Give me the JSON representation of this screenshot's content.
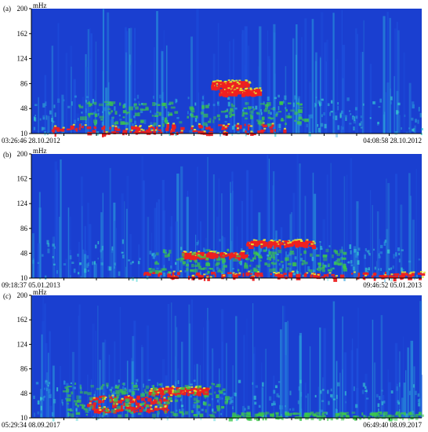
{
  "palette": {
    "background": "#1a3fd0",
    "low": "#1f55e0",
    "mid": "#2aa0dc",
    "cyan": "#38d0d0",
    "green": "#3cc84a",
    "yellow": "#e6e632",
    "red": "#ee2020"
  },
  "chart_data": [
    {
      "type": "heatmap",
      "panel_label": "(a)",
      "unit": "mHz",
      "y_ticks": [
        "200",
        "162",
        "124",
        "86",
        "48",
        "10"
      ],
      "ylim": [
        10,
        200
      ],
      "start_time": "03:26:46 28.10.2012",
      "end_time": "04:08:58 28.10.2012",
      "features": [
        {
          "band": "red",
          "freq_range_mHz": [
            80,
            90
          ],
          "time_fraction": [
            0.46,
            0.55
          ]
        },
        {
          "band": "red",
          "freq_range_mHz": [
            70,
            78
          ],
          "time_fraction": [
            0.48,
            0.58
          ]
        },
        {
          "band": "red",
          "freq_range_mHz": [
            10,
            25
          ],
          "time_fraction": [
            0.05,
            0.65
          ]
        },
        {
          "band": "green",
          "freq_range_mHz": [
            25,
            60
          ],
          "time_fraction": [
            0.12,
            0.7
          ]
        }
      ]
    },
    {
      "type": "heatmap",
      "panel_label": "(b)",
      "unit": "mHz",
      "y_ticks": [
        "200",
        "162",
        "124",
        "86",
        "48",
        "10"
      ],
      "ylim": [
        10,
        200
      ],
      "start_time": "09:18:37 05.01.2013",
      "end_time": "09:46:52 05.01.2013",
      "features": [
        {
          "band": "red",
          "freq_range_mHz": [
            60,
            68
          ],
          "time_fraction": [
            0.55,
            0.72
          ]
        },
        {
          "band": "red",
          "freq_range_mHz": [
            42,
            50
          ],
          "time_fraction": [
            0.38,
            0.55
          ]
        },
        {
          "band": "red",
          "freq_range_mHz": [
            10,
            20
          ],
          "time_fraction": [
            0.28,
            1.0
          ]
        },
        {
          "band": "green",
          "freq_range_mHz": [
            20,
            55
          ],
          "time_fraction": [
            0.3,
            0.8
          ]
        }
      ]
    },
    {
      "type": "heatmap",
      "panel_label": "(c)",
      "unit": "mHz",
      "y_ticks": [
        "200",
        "162",
        "124",
        "86",
        "48",
        "10"
      ],
      "ylim": [
        10,
        200
      ],
      "start_time": "05:29:34 08.09.2017",
      "end_time": "06:49:40 08.09.2017",
      "features": [
        {
          "band": "red",
          "freq_range_mHz": [
            48,
            58
          ],
          "time_fraction": [
            0.3,
            0.45
          ]
        },
        {
          "band": "red",
          "freq_range_mHz": [
            20,
            45
          ],
          "time_fraction": [
            0.14,
            0.35
          ]
        },
        {
          "band": "green",
          "freq_range_mHz": [
            15,
            65
          ],
          "time_fraction": [
            0.08,
            0.5
          ]
        },
        {
          "band": "green",
          "freq_range_mHz": [
            10,
            20
          ],
          "time_fraction": [
            0.5,
            1.0
          ]
        }
      ]
    }
  ]
}
